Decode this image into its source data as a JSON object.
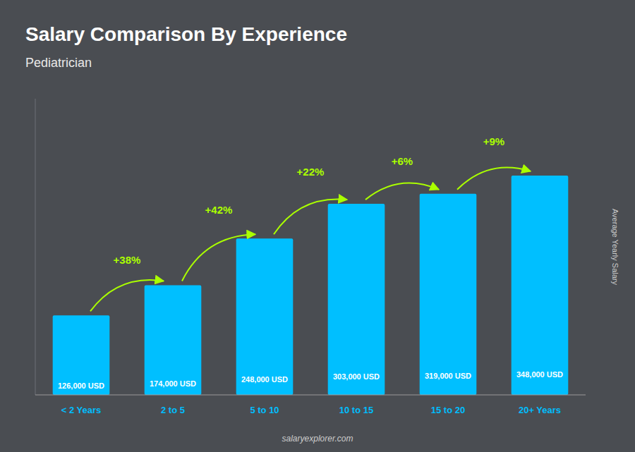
{
  "chart_data": {
    "type": "bar",
    "title": "Salary Comparison By Experience",
    "subtitle": "Pediatrician",
    "ylabel": "Average Yearly Salary",
    "footer": "salaryexplorer.com",
    "categories": [
      "< 2 Years",
      "2 to 5",
      "5 to 10",
      "10 to 15",
      "15 to 20",
      "20+ Years"
    ],
    "values": [
      126000,
      174000,
      248000,
      303000,
      319000,
      348000
    ],
    "value_labels": [
      "126,000 USD",
      "174,000 USD",
      "248,000 USD",
      "303,000 USD",
      "319,000 USD",
      "348,000 USD"
    ],
    "data_labels": true,
    "annotations": [
      "+38%",
      "+42%",
      "+22%",
      "+6%",
      "+9%"
    ],
    "annotation_color": "#aaff00",
    "color": "#00BFFF",
    "ylim": [
      0,
      469800
    ],
    "tick_labels": "x",
    "grid": false
  }
}
